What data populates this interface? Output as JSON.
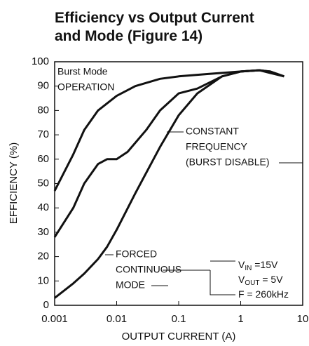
{
  "chart_data": {
    "type": "line",
    "title": [
      "Efficiency vs Output Current",
      "and Mode (Figure 14)"
    ],
    "xlabel": "OUTPUT CURRENT (A)",
    "ylabel": "EFFICIENCY (%)",
    "xscale": "log",
    "xlim": [
      0.001,
      10
    ],
    "xticks": [
      0.001,
      0.01,
      0.1,
      1,
      10
    ],
    "ylim": [
      0,
      100
    ],
    "yticks": [
      0,
      10,
      20,
      30,
      40,
      50,
      60,
      70,
      80,
      90,
      100
    ],
    "grid": false,
    "series": [
      {
        "label_lines": [
          "Burst Mode",
          "OPERATION"
        ],
        "color": "#111111",
        "x": [
          0.001,
          0.002,
          0.003,
          0.005,
          0.01,
          0.02,
          0.05,
          0.1,
          0.3,
          1,
          2,
          3,
          5
        ],
        "values": [
          47,
          62,
          72,
          80,
          86,
          90,
          93,
          94,
          95,
          96,
          96.5,
          96,
          94
        ]
      },
      {
        "label_lines": [
          "CONSTANT",
          "FREQUENCY",
          "(BURST DISABLE)"
        ],
        "color": "#111111",
        "x": [
          0.001,
          0.002,
          0.003,
          0.005,
          0.007,
          0.01,
          0.015,
          0.03,
          0.05,
          0.1,
          0.2,
          0.5,
          1,
          2,
          3,
          5
        ],
        "values": [
          28,
          40,
          50,
          58,
          60,
          60,
          63,
          72,
          80,
          87,
          89,
          94,
          96,
          96.5,
          96,
          94
        ]
      },
      {
        "label_lines": [
          "FORCED",
          "CONTINUOUS",
          "MODE"
        ],
        "color": "#111111",
        "x": [
          0.001,
          0.002,
          0.003,
          0.005,
          0.007,
          0.01,
          0.02,
          0.05,
          0.1,
          0.2,
          0.5,
          1,
          2,
          5
        ],
        "values": [
          3,
          9,
          13,
          19,
          24,
          31,
          46,
          65,
          78,
          87,
          94,
          96,
          96.5,
          94
        ]
      }
    ],
    "conditions": [
      {
        "main": "V",
        "sub": "IN",
        "tail": " =15V"
      },
      {
        "main": "V",
        "sub": "OUT",
        "tail": " = 5V"
      },
      {
        "main": "F = 260kHz"
      }
    ]
  }
}
